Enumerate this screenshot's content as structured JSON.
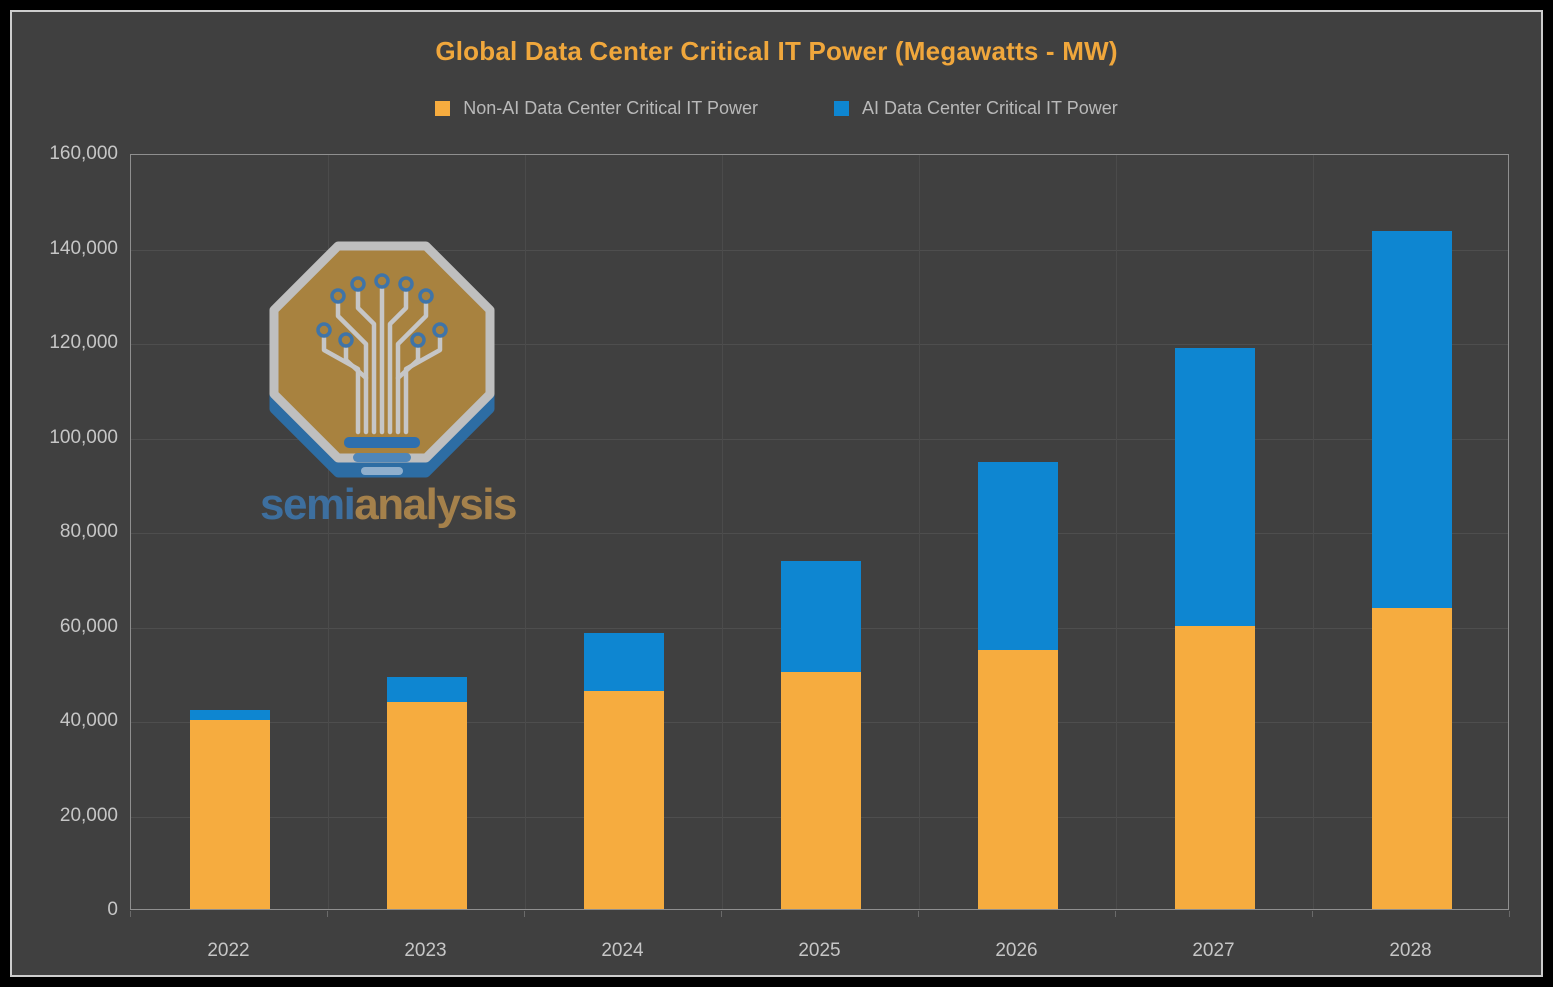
{
  "chart_data": {
    "type": "bar",
    "stacked": true,
    "title": "Global Data Center Critical IT Power (Megawatts - MW)",
    "categories": [
      "2022",
      "2023",
      "2024",
      "2025",
      "2026",
      "2027",
      "2028"
    ],
    "series": [
      {
        "name": "Non-AI Data Center Critical IT Power",
        "color": "#F6AC3F",
        "values": [
          40000,
          43900,
          46200,
          50200,
          54900,
          60000,
          63700
        ]
      },
      {
        "name": "AI Data Center Critical IT Power",
        "color": "#0E86D1",
        "values": [
          2200,
          5100,
          12300,
          23400,
          39700,
          58700,
          79700
        ]
      }
    ],
    "ylim": [
      0,
      160000
    ],
    "ytick_interval": 20000,
    "ytick_labels": [
      "0",
      "20,000",
      "40,000",
      "60,000",
      "80,000",
      "100,000",
      "120,000",
      "140,000",
      "160,000"
    ],
    "grid": true,
    "legend_position": "top"
  },
  "watermark": {
    "semi": "semi",
    "analysis": "analysis"
  },
  "colors": {
    "panel_background": "#404040",
    "frame_border": "#cdcdcd",
    "title_text": "#f0a73c",
    "axis_text": "#c6c6c6",
    "legend_text": "#b9b9b9",
    "gridline": "#4e4e4e",
    "non_ai_bar": "#F6AC3F",
    "ai_bar": "#0E86D1"
  }
}
